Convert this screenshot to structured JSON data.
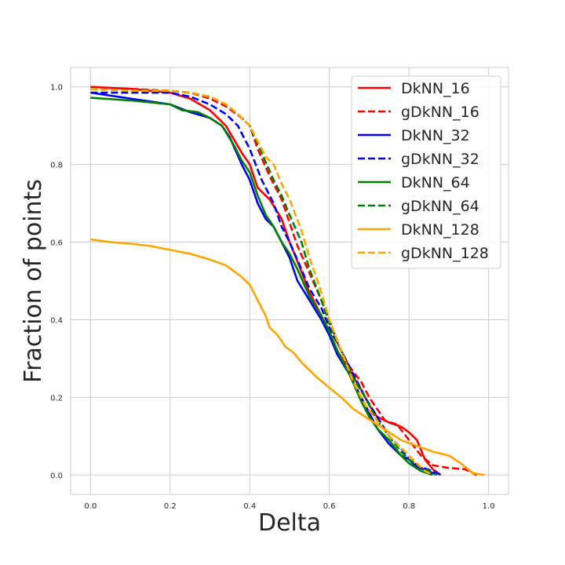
{
  "chart_data": {
    "type": "line",
    "title": "",
    "xlabel": "Delta",
    "ylabel": "Fraction of points",
    "xlim": [
      -0.05,
      1.05
    ],
    "ylim": [
      -0.05,
      1.05
    ],
    "xticks": [
      "0.0",
      "0.2",
      "0.4",
      "0.6",
      "0.8",
      "1.0"
    ],
    "yticks": [
      "0.0",
      "0.2",
      "0.4",
      "0.6",
      "0.8",
      "1.0"
    ],
    "grid": true,
    "legend_position": "top-right",
    "series": [
      {
        "name": "DkNN_16",
        "color": "#ff0000",
        "dash": "solid",
        "points": [
          [
            0.0,
            1.0
          ],
          [
            0.1,
            0.995
          ],
          [
            0.2,
            0.985
          ],
          [
            0.25,
            0.97
          ],
          [
            0.3,
            0.94
          ],
          [
            0.34,
            0.9
          ],
          [
            0.38,
            0.83
          ],
          [
            0.4,
            0.8
          ],
          [
            0.42,
            0.74
          ],
          [
            0.45,
            0.71
          ],
          [
            0.48,
            0.66
          ],
          [
            0.5,
            0.6
          ],
          [
            0.52,
            0.55
          ],
          [
            0.55,
            0.47
          ],
          [
            0.58,
            0.41
          ],
          [
            0.6,
            0.37
          ],
          [
            0.62,
            0.32
          ],
          [
            0.65,
            0.27
          ],
          [
            0.68,
            0.22
          ],
          [
            0.7,
            0.18
          ],
          [
            0.72,
            0.15
          ],
          [
            0.75,
            0.135
          ],
          [
            0.78,
            0.125
          ],
          [
            0.8,
            0.11
          ],
          [
            0.82,
            0.09
          ],
          [
            0.84,
            0.04
          ],
          [
            0.86,
            0.015
          ],
          [
            0.88,
            0.0
          ]
        ]
      },
      {
        "name": "gDkNN_16",
        "color": "#ff0000",
        "dash": "dashed",
        "points": [
          [
            0.0,
            0.995
          ],
          [
            0.1,
            0.995
          ],
          [
            0.2,
            0.99
          ],
          [
            0.25,
            0.985
          ],
          [
            0.3,
            0.97
          ],
          [
            0.34,
            0.95
          ],
          [
            0.38,
            0.92
          ],
          [
            0.4,
            0.9
          ],
          [
            0.42,
            0.84
          ],
          [
            0.45,
            0.77
          ],
          [
            0.48,
            0.71
          ],
          [
            0.5,
            0.65
          ],
          [
            0.52,
            0.59
          ],
          [
            0.55,
            0.52
          ],
          [
            0.58,
            0.45
          ],
          [
            0.6,
            0.4
          ],
          [
            0.62,
            0.34
          ],
          [
            0.65,
            0.28
          ],
          [
            0.68,
            0.24
          ],
          [
            0.7,
            0.2
          ],
          [
            0.72,
            0.17
          ],
          [
            0.74,
            0.14
          ],
          [
            0.77,
            0.13
          ],
          [
            0.8,
            0.09
          ],
          [
            0.83,
            0.05
          ],
          [
            0.86,
            0.025
          ],
          [
            0.9,
            0.018
          ],
          [
            0.94,
            0.015
          ],
          [
            0.97,
            0.0
          ]
        ]
      },
      {
        "name": "DkNN_32",
        "color": "#0000ff",
        "dash": "solid",
        "points": [
          [
            0.0,
            0.985
          ],
          [
            0.1,
            0.97
          ],
          [
            0.2,
            0.955
          ],
          [
            0.25,
            0.935
          ],
          [
            0.3,
            0.92
          ],
          [
            0.33,
            0.9
          ],
          [
            0.35,
            0.87
          ],
          [
            0.38,
            0.8
          ],
          [
            0.4,
            0.76
          ],
          [
            0.42,
            0.7
          ],
          [
            0.44,
            0.66
          ],
          [
            0.46,
            0.64
          ],
          [
            0.48,
            0.6
          ],
          [
            0.5,
            0.56
          ],
          [
            0.52,
            0.5
          ],
          [
            0.55,
            0.45
          ],
          [
            0.58,
            0.4
          ],
          [
            0.6,
            0.36
          ],
          [
            0.62,
            0.31
          ],
          [
            0.65,
            0.26
          ],
          [
            0.68,
            0.2
          ],
          [
            0.7,
            0.16
          ],
          [
            0.72,
            0.12
          ],
          [
            0.75,
            0.08
          ],
          [
            0.78,
            0.05
          ],
          [
            0.8,
            0.04
          ],
          [
            0.82,
            0.02
          ],
          [
            0.85,
            0.01
          ],
          [
            0.87,
            0.0
          ]
        ]
      },
      {
        "name": "gDkNN_32",
        "color": "#0000ff",
        "dash": "dashed",
        "points": [
          [
            0.0,
            0.985
          ],
          [
            0.1,
            0.985
          ],
          [
            0.2,
            0.985
          ],
          [
            0.25,
            0.975
          ],
          [
            0.3,
            0.955
          ],
          [
            0.34,
            0.93
          ],
          [
            0.37,
            0.9
          ],
          [
            0.4,
            0.84
          ],
          [
            0.43,
            0.76
          ],
          [
            0.46,
            0.7
          ],
          [
            0.48,
            0.64
          ],
          [
            0.5,
            0.6
          ],
          [
            0.53,
            0.53
          ],
          [
            0.55,
            0.48
          ],
          [
            0.58,
            0.43
          ],
          [
            0.6,
            0.38
          ],
          [
            0.63,
            0.32
          ],
          [
            0.66,
            0.26
          ],
          [
            0.69,
            0.2
          ],
          [
            0.72,
            0.15
          ],
          [
            0.75,
            0.1
          ],
          [
            0.78,
            0.07
          ],
          [
            0.8,
            0.04
          ],
          [
            0.83,
            0.02
          ],
          [
            0.86,
            0.01
          ],
          [
            0.88,
            0.0
          ]
        ]
      },
      {
        "name": "DkNN_64",
        "color": "#008000",
        "dash": "solid",
        "points": [
          [
            0.0,
            0.972
          ],
          [
            0.1,
            0.965
          ],
          [
            0.2,
            0.955
          ],
          [
            0.23,
            0.94
          ],
          [
            0.27,
            0.935
          ],
          [
            0.3,
            0.92
          ],
          [
            0.33,
            0.9
          ],
          [
            0.36,
            0.85
          ],
          [
            0.38,
            0.81
          ],
          [
            0.4,
            0.78
          ],
          [
            0.42,
            0.72
          ],
          [
            0.44,
            0.67
          ],
          [
            0.46,
            0.64
          ],
          [
            0.48,
            0.6
          ],
          [
            0.5,
            0.57
          ],
          [
            0.52,
            0.53
          ],
          [
            0.55,
            0.46
          ],
          [
            0.58,
            0.41
          ],
          [
            0.6,
            0.37
          ],
          [
            0.62,
            0.32
          ],
          [
            0.65,
            0.26
          ],
          [
            0.68,
            0.19
          ],
          [
            0.7,
            0.15
          ],
          [
            0.72,
            0.12
          ],
          [
            0.75,
            0.09
          ],
          [
            0.78,
            0.05
          ],
          [
            0.8,
            0.03
          ],
          [
            0.83,
            0.01
          ],
          [
            0.86,
            0.0
          ]
        ]
      },
      {
        "name": "gDkNN_64",
        "color": "#008000",
        "dash": "dashed",
        "points": [
          [
            0.0,
            0.995
          ],
          [
            0.1,
            0.99
          ],
          [
            0.2,
            0.99
          ],
          [
            0.25,
            0.985
          ],
          [
            0.3,
            0.975
          ],
          [
            0.34,
            0.955
          ],
          [
            0.37,
            0.93
          ],
          [
            0.4,
            0.9
          ],
          [
            0.43,
            0.83
          ],
          [
            0.46,
            0.76
          ],
          [
            0.48,
            0.72
          ],
          [
            0.5,
            0.67
          ],
          [
            0.53,
            0.6
          ],
          [
            0.55,
            0.53
          ],
          [
            0.58,
            0.45
          ],
          [
            0.6,
            0.39
          ],
          [
            0.63,
            0.32
          ],
          [
            0.66,
            0.25
          ],
          [
            0.69,
            0.2
          ],
          [
            0.72,
            0.14
          ],
          [
            0.75,
            0.1
          ],
          [
            0.78,
            0.06
          ],
          [
            0.8,
            0.04
          ],
          [
            0.83,
            0.02
          ],
          [
            0.85,
            0.01
          ],
          [
            0.87,
            0.0
          ]
        ]
      },
      {
        "name": "DkNN_128",
        "color": "#ffa500",
        "dash": "solid",
        "points": [
          [
            0.0,
            0.607
          ],
          [
            0.05,
            0.6
          ],
          [
            0.1,
            0.596
          ],
          [
            0.15,
            0.59
          ],
          [
            0.2,
            0.58
          ],
          [
            0.25,
            0.57
          ],
          [
            0.3,
            0.555
          ],
          [
            0.34,
            0.54
          ],
          [
            0.36,
            0.525
          ],
          [
            0.38,
            0.51
          ],
          [
            0.4,
            0.49
          ],
          [
            0.42,
            0.45
          ],
          [
            0.44,
            0.41
          ],
          [
            0.45,
            0.38
          ],
          [
            0.47,
            0.36
          ],
          [
            0.49,
            0.33
          ],
          [
            0.51,
            0.315
          ],
          [
            0.53,
            0.29
          ],
          [
            0.55,
            0.27
          ],
          [
            0.57,
            0.25
          ],
          [
            0.6,
            0.225
          ],
          [
            0.63,
            0.2
          ],
          [
            0.66,
            0.17
          ],
          [
            0.69,
            0.15
          ],
          [
            0.72,
            0.13
          ],
          [
            0.75,
            0.11
          ],
          [
            0.78,
            0.09
          ],
          [
            0.82,
            0.075
          ],
          [
            0.86,
            0.06
          ],
          [
            0.9,
            0.05
          ],
          [
            0.93,
            0.03
          ],
          [
            0.96,
            0.005
          ],
          [
            0.99,
            0.0
          ]
        ]
      },
      {
        "name": "gDkNN_128",
        "color": "#ffa500",
        "dash": "dashed",
        "points": [
          [
            0.0,
            0.995
          ],
          [
            0.1,
            0.99
          ],
          [
            0.2,
            0.99
          ],
          [
            0.25,
            0.985
          ],
          [
            0.3,
            0.975
          ],
          [
            0.34,
            0.955
          ],
          [
            0.37,
            0.93
          ],
          [
            0.4,
            0.9
          ],
          [
            0.42,
            0.86
          ],
          [
            0.44,
            0.82
          ],
          [
            0.46,
            0.8
          ],
          [
            0.48,
            0.75
          ],
          [
            0.5,
            0.71
          ],
          [
            0.53,
            0.63
          ],
          [
            0.55,
            0.56
          ],
          [
            0.58,
            0.47
          ],
          [
            0.6,
            0.4
          ],
          [
            0.63,
            0.32
          ],
          [
            0.66,
            0.24
          ],
          [
            0.69,
            0.18
          ],
          [
            0.72,
            0.14
          ],
          [
            0.75,
            0.1
          ],
          [
            0.78,
            0.07
          ],
          [
            0.8,
            0.05
          ],
          [
            0.82,
            0.03
          ],
          [
            0.84,
            0.01
          ],
          [
            0.86,
            0.0
          ]
        ]
      }
    ]
  }
}
